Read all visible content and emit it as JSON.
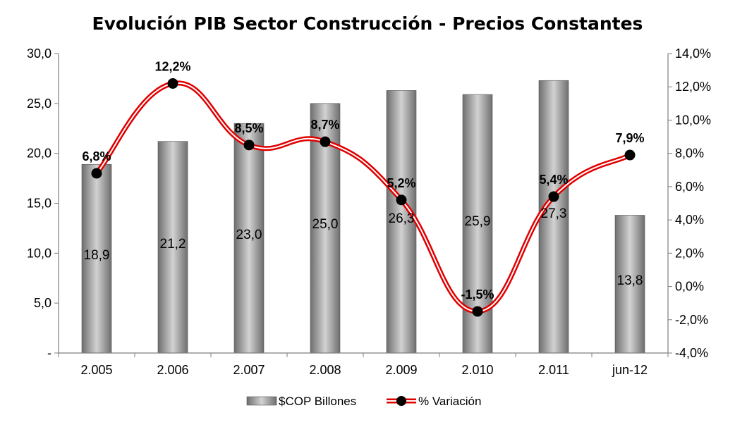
{
  "chart_data": {
    "type": "bar",
    "title": "Evolución PIB Sector Construcción - Precios Constantes",
    "categories": [
      "2.005",
      "2.006",
      "2.007",
      "2.008",
      "2.009",
      "2.010",
      "2.011",
      "jun-12"
    ],
    "series": [
      {
        "name": "$COP Billones",
        "type": "bar",
        "axis": "left",
        "values": [
          18.9,
          21.2,
          23.0,
          25.0,
          26.3,
          25.9,
          27.3,
          13.8
        ],
        "labels": [
          "18,9",
          "21,2",
          "23,0",
          "25,0",
          "26,3",
          "25,9",
          "27,3",
          "13,8"
        ]
      },
      {
        "name": "% Variación",
        "type": "line",
        "axis": "right",
        "values": [
          6.8,
          12.2,
          8.5,
          8.7,
          5.2,
          -1.5,
          5.4,
          7.9
        ],
        "labels": [
          "6,8%",
          "12,2%",
          "8,5%",
          "8,7%",
          "5,2%",
          "-1,5%",
          "5,4%",
          "7,9%"
        ]
      }
    ],
    "y_left": {
      "min": 0,
      "max": 30,
      "step": 5,
      "tick_labels": [
        "-",
        "5,0",
        "10,0",
        "15,0",
        "20,0",
        "25,0",
        "30,0"
      ]
    },
    "y_right": {
      "min": -4,
      "max": 14,
      "step": 2,
      "tick_labels": [
        "-4,0%",
        "-2,0%",
        "0,0%",
        "2,0%",
        "4,0%",
        "6,0%",
        "8,0%",
        "10,0%",
        "12,0%",
        "14,0%"
      ]
    },
    "grid": false,
    "legend_position": "bottom",
    "colors": {
      "bar_dark": "#6e6e6e",
      "bar_light": "#d2d2d2",
      "line_outer": "#e00000",
      "line_inner": "#ffffff",
      "marker": "#000000",
      "axis": "#7f7f7f"
    }
  }
}
